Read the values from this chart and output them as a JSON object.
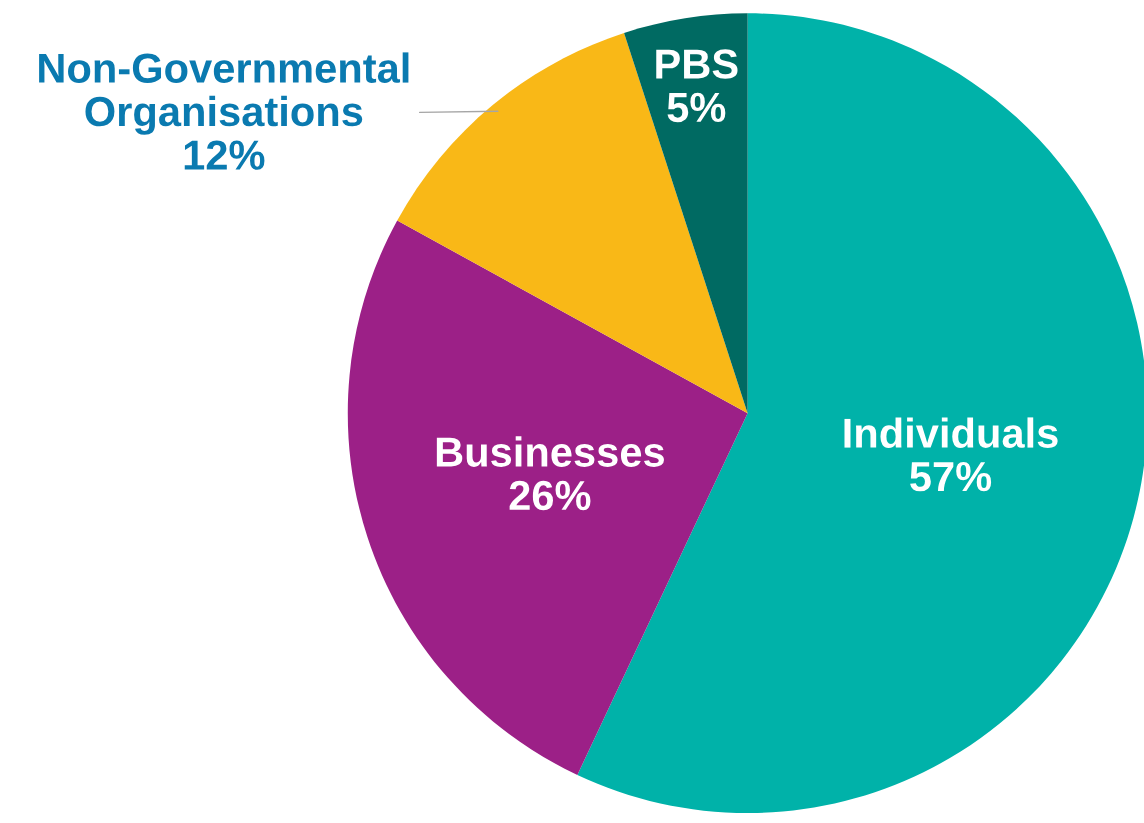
{
  "chart_data": {
    "type": "pie",
    "categories": [
      "Individuals",
      "Businesses",
      "Non-Governmental Organisations",
      "PBS"
    ],
    "values": [
      57,
      26,
      12,
      5
    ],
    "value_labels": [
      "57%",
      "26%",
      "12%",
      "5%"
    ],
    "colors": [
      "#00b2a9",
      "#9c2087",
      "#f9b817",
      "#006a62"
    ],
    "legend": false
  }
}
